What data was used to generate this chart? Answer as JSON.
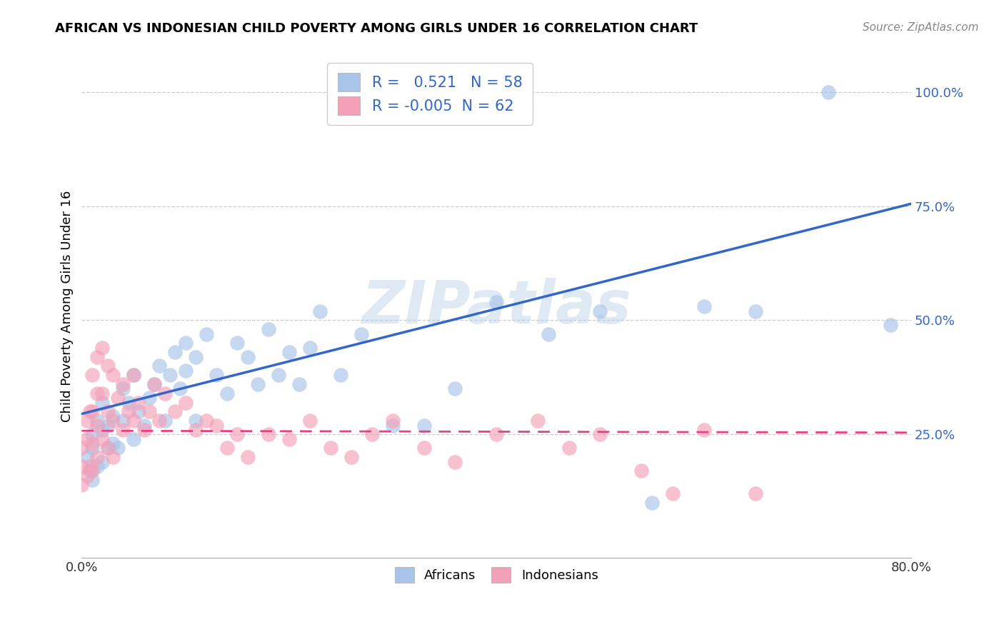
{
  "title": "AFRICAN VS INDONESIAN CHILD POVERTY AMONG GIRLS UNDER 16 CORRELATION CHART",
  "source": "Source: ZipAtlas.com",
  "ylabel": "Child Poverty Among Girls Under 16",
  "xlim": [
    0.0,
    0.8
  ],
  "ylim": [
    -0.02,
    1.08
  ],
  "x_ticks": [
    0.0,
    0.2,
    0.4,
    0.6,
    0.8
  ],
  "x_tick_labels": [
    "0.0%",
    "",
    "",
    "",
    "80.0%"
  ],
  "y_ticks": [
    0.25,
    0.5,
    0.75,
    1.0
  ],
  "y_tick_labels": [
    "25.0%",
    "50.0%",
    "75.0%",
    "100.0%"
  ],
  "african_R": 0.521,
  "african_N": 58,
  "indonesian_R": -0.005,
  "indonesian_N": 62,
  "african_color": "#a8c4e8",
  "indonesian_color": "#f4a0b8",
  "african_line_color": "#3366cc",
  "indonesian_line_color": "#e84080",
  "watermark": "ZIPatlas",
  "background_color": "#ffffff",
  "grid_color": "#cccccc",
  "african_line_x0": 0.0,
  "african_line_y0": 0.295,
  "african_line_x1": 0.8,
  "african_line_y1": 0.755,
  "indonesian_line_x0": 0.0,
  "indonesian_line_y0": 0.258,
  "indonesian_line_x1": 0.8,
  "indonesian_line_y1": 0.254,
  "africans_x": [
    0.005,
    0.008,
    0.01,
    0.01,
    0.01,
    0.015,
    0.015,
    0.02,
    0.02,
    0.02,
    0.025,
    0.025,
    0.03,
    0.03,
    0.035,
    0.04,
    0.04,
    0.045,
    0.05,
    0.05,
    0.055,
    0.06,
    0.065,
    0.07,
    0.075,
    0.08,
    0.085,
    0.09,
    0.095,
    0.1,
    0.1,
    0.11,
    0.11,
    0.12,
    0.13,
    0.14,
    0.15,
    0.16,
    0.17,
    0.18,
    0.19,
    0.2,
    0.21,
    0.22,
    0.23,
    0.25,
    0.27,
    0.3,
    0.33,
    0.36,
    0.4,
    0.45,
    0.5,
    0.55,
    0.6,
    0.65,
    0.72,
    0.78
  ],
  "africans_y": [
    0.2,
    0.17,
    0.25,
    0.22,
    0.15,
    0.28,
    0.18,
    0.26,
    0.32,
    0.19,
    0.27,
    0.22,
    0.29,
    0.23,
    0.22,
    0.35,
    0.28,
    0.32,
    0.38,
    0.24,
    0.3,
    0.27,
    0.33,
    0.36,
    0.4,
    0.28,
    0.38,
    0.43,
    0.35,
    0.45,
    0.39,
    0.42,
    0.28,
    0.47,
    0.38,
    0.34,
    0.45,
    0.42,
    0.36,
    0.48,
    0.38,
    0.43,
    0.36,
    0.44,
    0.52,
    0.38,
    0.47,
    0.27,
    0.27,
    0.35,
    0.54,
    0.47,
    0.52,
    0.1,
    0.53,
    0.52,
    1.0,
    0.49
  ],
  "indonesians_x": [
    0.0,
    0.0,
    0.0,
    0.005,
    0.005,
    0.005,
    0.008,
    0.008,
    0.01,
    0.01,
    0.01,
    0.01,
    0.015,
    0.015,
    0.015,
    0.015,
    0.02,
    0.02,
    0.02,
    0.025,
    0.025,
    0.025,
    0.03,
    0.03,
    0.03,
    0.035,
    0.04,
    0.04,
    0.045,
    0.05,
    0.05,
    0.055,
    0.06,
    0.065,
    0.07,
    0.075,
    0.08,
    0.09,
    0.1,
    0.11,
    0.12,
    0.13,
    0.14,
    0.15,
    0.16,
    0.18,
    0.2,
    0.22,
    0.24,
    0.26,
    0.28,
    0.3,
    0.33,
    0.36,
    0.4,
    0.44,
    0.47,
    0.5,
    0.54,
    0.57,
    0.6,
    0.65
  ],
  "indonesians_y": [
    0.22,
    0.18,
    0.14,
    0.28,
    0.24,
    0.16,
    0.3,
    0.18,
    0.38,
    0.3,
    0.23,
    0.17,
    0.42,
    0.34,
    0.27,
    0.2,
    0.44,
    0.34,
    0.24,
    0.4,
    0.3,
    0.22,
    0.38,
    0.28,
    0.2,
    0.33,
    0.36,
    0.26,
    0.3,
    0.38,
    0.28,
    0.32,
    0.26,
    0.3,
    0.36,
    0.28,
    0.34,
    0.3,
    0.32,
    0.26,
    0.28,
    0.27,
    0.22,
    0.25,
    0.2,
    0.25,
    0.24,
    0.28,
    0.22,
    0.2,
    0.25,
    0.28,
    0.22,
    0.19,
    0.25,
    0.28,
    0.22,
    0.25,
    0.17,
    0.12,
    0.26,
    0.12
  ]
}
